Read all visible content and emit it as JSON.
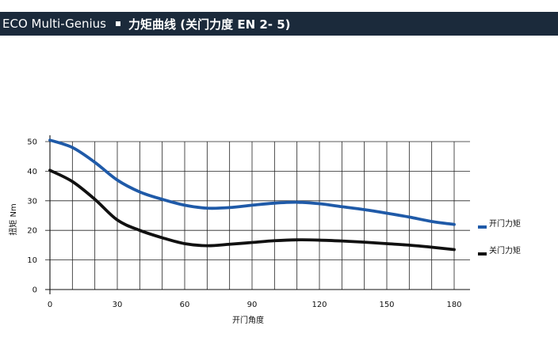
{
  "header": {
    "title": "ECO Multi-Genius",
    "subtitle": "力矩曲线 (关门力度 EN 2- 5)",
    "bg_color": "#1b2a3b"
  },
  "chart_data": {
    "type": "line",
    "xlabel": "开门角度",
    "ylabel": "扭矩 Nm",
    "xlim": [
      0,
      180
    ],
    "ylim": [
      0,
      50
    ],
    "x_ticks": [
      0,
      30,
      60,
      90,
      120,
      150,
      180
    ],
    "y_ticks": [
      0,
      10,
      20,
      30,
      40,
      50
    ],
    "grid": true,
    "legend_position": "right",
    "series": [
      {
        "name": "开门力矩",
        "color": "#1f5aa8",
        "x": [
          0,
          10,
          20,
          30,
          40,
          50,
          60,
          70,
          80,
          90,
          100,
          110,
          120,
          130,
          140,
          150,
          160,
          170,
          180
        ],
        "values": [
          50.5,
          48,
          43,
          37,
          33,
          30.5,
          28.5,
          27.5,
          27.7,
          28.5,
          29.2,
          29.5,
          29,
          28,
          27,
          25.8,
          24.5,
          23,
          22
        ]
      },
      {
        "name": "关门力矩",
        "color": "#111111",
        "x": [
          0,
          10,
          20,
          30,
          40,
          50,
          60,
          70,
          80,
          90,
          100,
          110,
          120,
          130,
          140,
          150,
          160,
          170,
          180
        ],
        "values": [
          40.3,
          36.5,
          30.5,
          23.5,
          20,
          17.5,
          15.5,
          14.8,
          15.3,
          15.9,
          16.5,
          16.8,
          16.7,
          16.4,
          16,
          15.5,
          15,
          14.3,
          13.5
        ]
      }
    ]
  }
}
